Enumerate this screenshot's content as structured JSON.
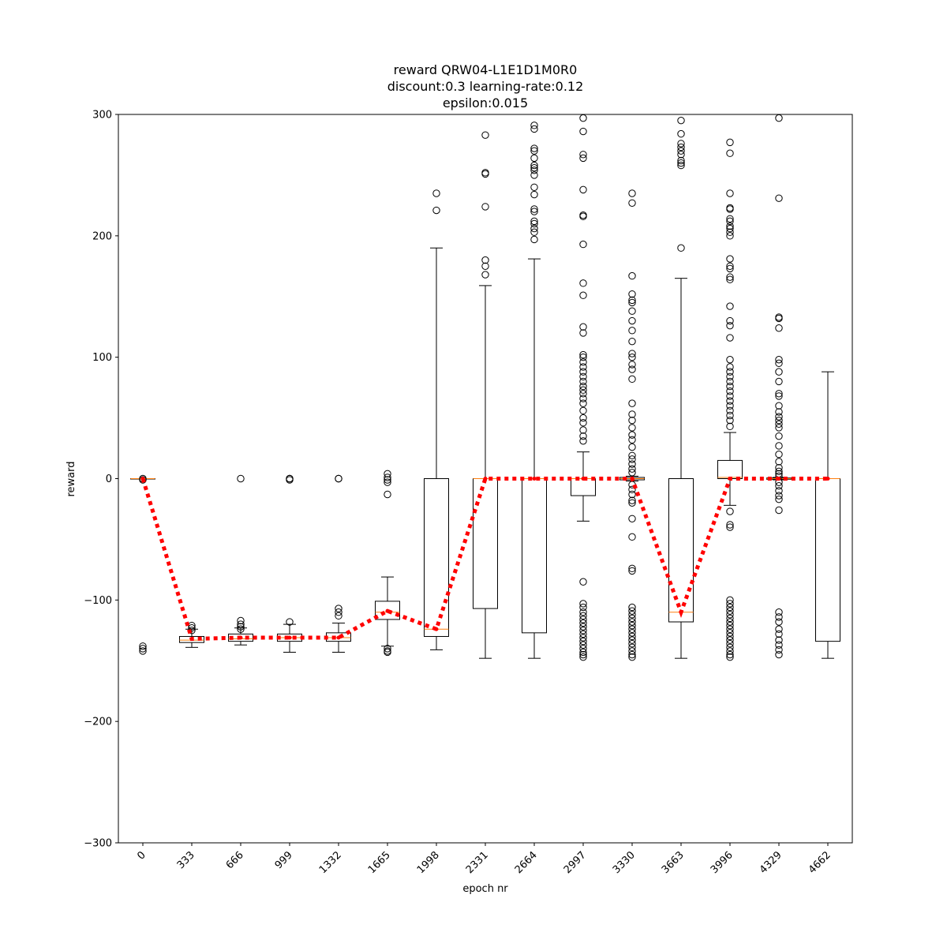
{
  "chart_data": {
    "type": "box",
    "title_lines": [
      "reward QRW04-L1E1D1M0R0",
      "discount:0.3 learning-rate:0.12",
      "epsilon:0.015"
    ],
    "xlabel": "epoch nr",
    "ylabel": "reward",
    "ylim": [
      -300,
      300
    ],
    "yticks": [
      -300,
      -200,
      -100,
      0,
      100,
      200,
      300
    ],
    "yticklabels": [
      "−300",
      "−200",
      "−100",
      "0",
      "100",
      "200",
      "300"
    ],
    "categories": [
      "0",
      "333",
      "666",
      "999",
      "1332",
      "1665",
      "1998",
      "2331",
      "2664",
      "2997",
      "3330",
      "3663",
      "3996",
      "4329",
      "4662"
    ],
    "colors": {
      "box": "#000000",
      "median": "#ff7f0e",
      "mean_line": "#ff0000"
    },
    "mean_values": [
      0,
      -132,
      -131,
      -131,
      -131,
      -109,
      -124,
      0,
      0,
      0,
      0,
      -110,
      0,
      0,
      0
    ],
    "boxes": [
      {
        "whislo": 0,
        "q1": 0,
        "med": 0,
        "q3": 0,
        "whishi": 0,
        "fliers": [
          -138,
          -140,
          -142,
          -1,
          0
        ]
      },
      {
        "whislo": -139,
        "q1": -135,
        "med": -133,
        "q3": -130,
        "whishi": -124,
        "fliers": [
          -121,
          -123,
          -125
        ]
      },
      {
        "whislo": -137,
        "q1": -134,
        "med": -132,
        "q3": -128,
        "whishi": -123,
        "fliers": [
          -117,
          -120,
          -122,
          -124,
          0
        ]
      },
      {
        "whislo": -143,
        "q1": -134,
        "med": -131,
        "q3": -128,
        "whishi": -120,
        "fliers": [
          -118,
          0,
          -1,
          0
        ]
      },
      {
        "whislo": -143,
        "q1": -134,
        "med": -131,
        "q3": -127,
        "whishi": -119,
        "fliers": [
          -107,
          -110,
          -113,
          0,
          0
        ]
      },
      {
        "whislo": -138,
        "q1": -116,
        "med": -110,
        "q3": -101,
        "whishi": -81,
        "fliers": [
          -140,
          -142,
          -143,
          -13,
          4,
          1,
          -1,
          -3
        ]
      },
      {
        "whislo": -141,
        "q1": -130,
        "med": -124,
        "q3": 0,
        "whishi": 190,
        "fliers": [
          221,
          235
        ]
      },
      {
        "whislo": -148,
        "q1": -107,
        "med": 0,
        "q3": 0,
        "whishi": 159,
        "fliers": [
          168,
          175,
          180,
          224,
          251,
          252,
          283
        ]
      },
      {
        "whislo": -148,
        "q1": -127,
        "med": 0,
        "q3": 0,
        "whishi": 181,
        "fliers": [
          197,
          203,
          206,
          210,
          212,
          220,
          222,
          234,
          240,
          250,
          254,
          256,
          258,
          264,
          270,
          272,
          288,
          291
        ]
      },
      {
        "whislo": -35,
        "q1": -14,
        "med": 0,
        "q3": 0,
        "whishi": 22,
        "fliers": [
          31,
          35,
          40,
          46,
          50,
          56,
          62,
          66,
          70,
          73,
          76,
          80,
          84,
          88,
          92,
          96,
          100,
          102,
          120,
          125,
          151,
          161,
          193,
          216,
          217,
          238,
          264,
          267,
          286,
          297,
          -85,
          -103,
          -106,
          -110,
          -113,
          -116,
          -119,
          -122,
          -125,
          -128,
          -131,
          -134,
          -137,
          -140,
          -143,
          -145,
          -147
        ]
      },
      {
        "whislo": -2,
        "q1": -1,
        "med": 0,
        "q3": 1,
        "whishi": 2,
        "fliers": [
          5,
          8,
          12,
          16,
          19,
          26,
          32,
          36,
          42,
          48,
          53,
          62,
          82,
          90,
          94,
          100,
          103,
          113,
          122,
          130,
          138,
          145,
          147,
          152,
          167,
          227,
          235,
          -5,
          -9,
          -13,
          -18,
          -20,
          -33,
          -48,
          -74,
          -76,
          -106,
          -109,
          -112,
          -115,
          -118,
          -121,
          -124,
          -127,
          -130,
          -133,
          -136,
          -139,
          -142,
          -145,
          -147
        ]
      },
      {
        "whislo": -148,
        "q1": -118,
        "med": -110,
        "q3": 0,
        "whishi": 165,
        "fliers": [
          190,
          258,
          260,
          262,
          267,
          270,
          273,
          276,
          284,
          295
        ]
      },
      {
        "whislo": -22,
        "q1": 0,
        "med": 1,
        "q3": 15,
        "whishi": 38,
        "fliers": [
          43,
          48,
          52,
          56,
          60,
          64,
          68,
          72,
          76,
          80,
          84,
          88,
          92,
          98,
          116,
          126,
          130,
          142,
          164,
          166,
          173,
          175,
          181,
          200,
          203,
          206,
          208,
          212,
          214,
          222,
          223,
          235,
          268,
          277,
          -27,
          -38,
          -40,
          -100,
          -103,
          -106,
          -109,
          -112,
          -115,
          -118,
          -121,
          -124,
          -127,
          -130,
          -133,
          -136,
          -139,
          -142,
          -145,
          -147
        ]
      },
      {
        "whislo": -1,
        "q1": -0.5,
        "med": 0,
        "q3": 0.5,
        "whishi": 1,
        "fliers": [
          2,
          4,
          6,
          9,
          14,
          20,
          27,
          35,
          42,
          45,
          48,
          51,
          55,
          60,
          68,
          70,
          80,
          88,
          95,
          98,
          124,
          132,
          133,
          231,
          297,
          -3,
          -6,
          -10,
          -14,
          -17,
          -26,
          -110,
          -114,
          -118,
          -124,
          -128,
          -133,
          -137,
          -141,
          -145
        ]
      },
      {
        "whislo": -148,
        "q1": -134,
        "med": 0,
        "q3": 0,
        "whishi": 88,
        "fliers": []
      }
    ]
  }
}
